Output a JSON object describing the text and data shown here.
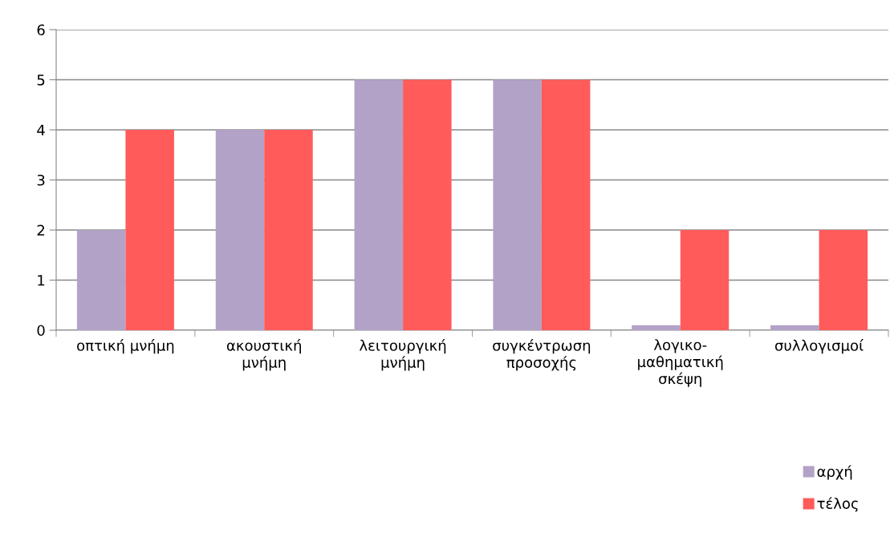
{
  "chart_data": {
    "type": "bar",
    "categories": [
      "οπτική μνήμη",
      "ακουστική\nμνήμη",
      "λειτουργική\nμνήμη",
      "συγκέντρωση\nπροσοχής",
      "λογικο-\nμαθηματική\nσκέψη",
      "συλλογισμοί"
    ],
    "series": [
      {
        "name": "αρχή",
        "color": "#b3a2c7",
        "values": [
          2,
          4,
          5,
          5,
          0.1,
          0.1
        ]
      },
      {
        "name": "τέλος",
        "color": "#ff5b5b",
        "values": [
          4,
          4,
          5,
          5,
          2,
          2
        ]
      }
    ],
    "ylim": [
      0,
      6
    ],
    "yticks": [
      0,
      1,
      2,
      3,
      4,
      5,
      6
    ],
    "grid": "y",
    "legend": "bottom right"
  }
}
